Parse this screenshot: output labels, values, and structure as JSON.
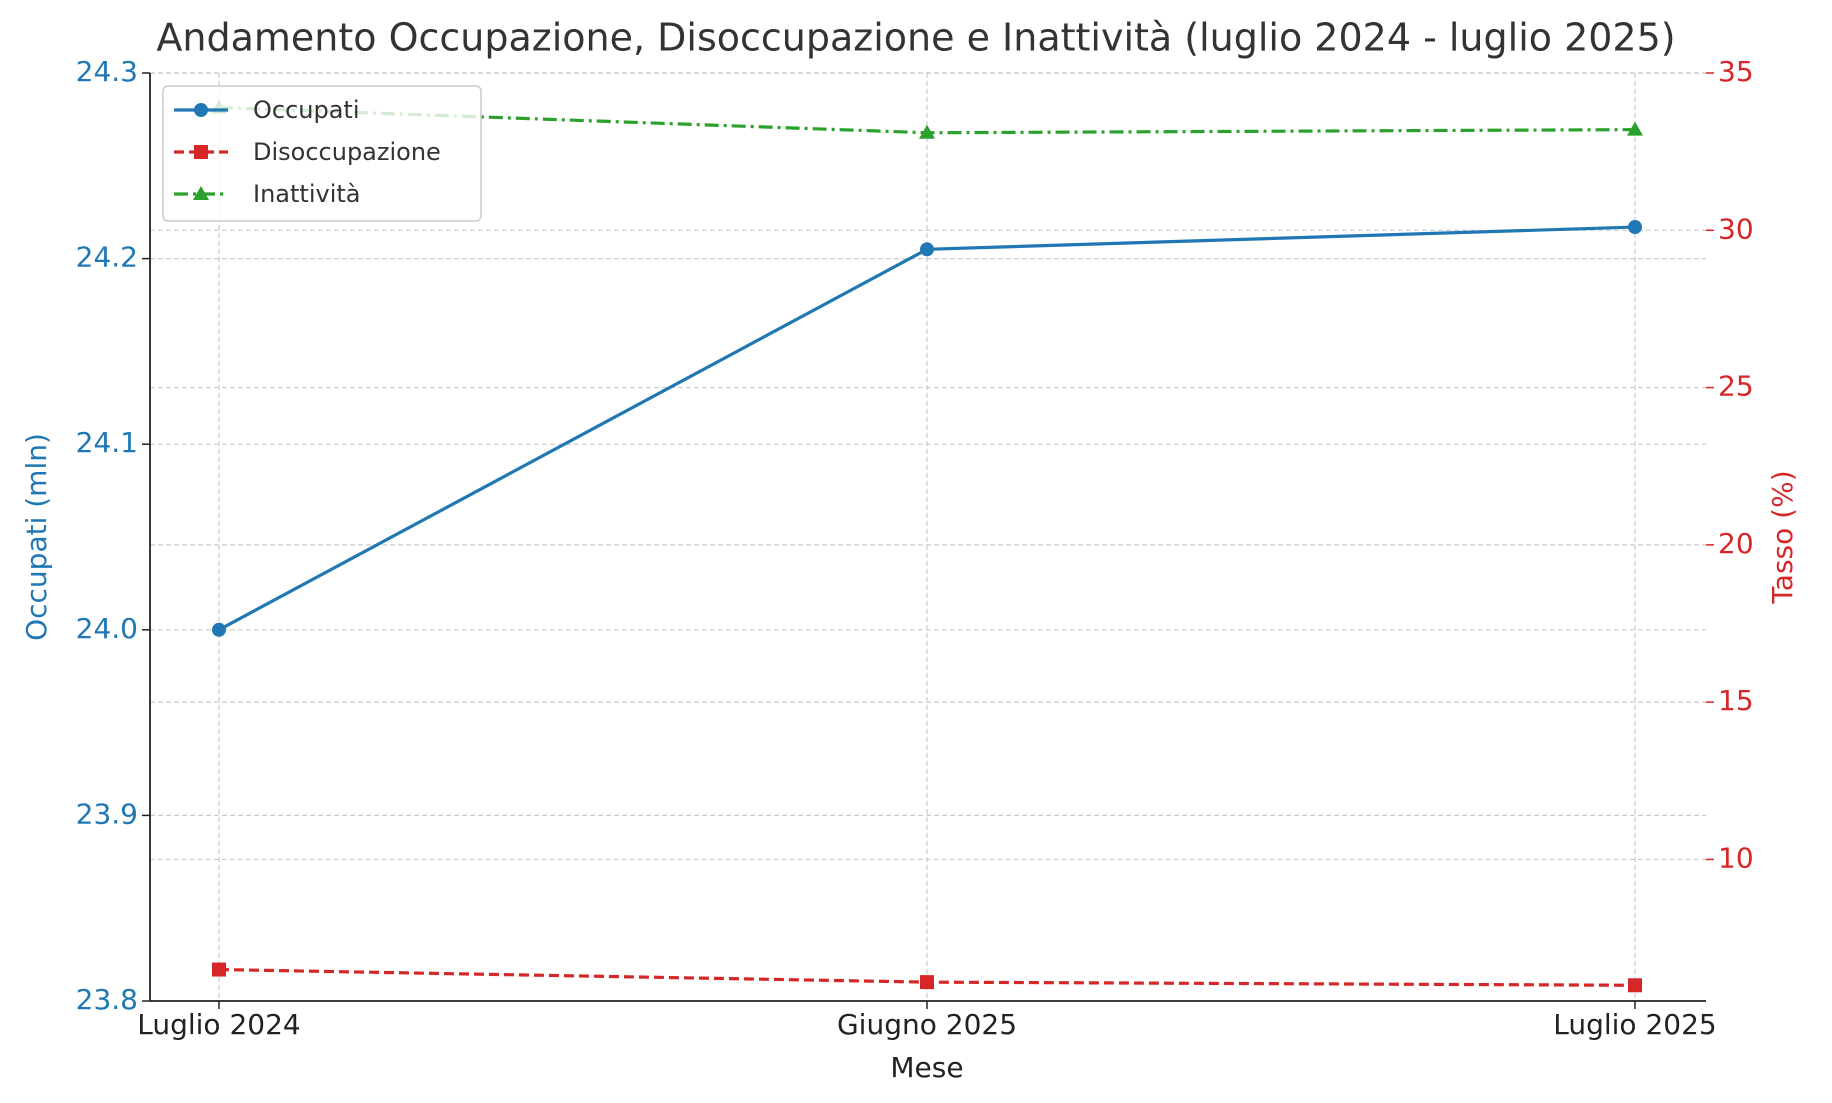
{
  "chart_data": {
    "type": "line",
    "title": "Andamento Occupazione, Disoccupazione e Inattività (luglio 2024 - luglio 2025)",
    "x_label": "Mese",
    "y_label": "Occupati (mln)",
    "y2_label": "Tasso (%)",
    "y_color": "#1f77b4",
    "y2_color": "#d62728",
    "categories": [
      "Luglio 2024",
      "Giugno 2025",
      "Luglio 2025"
    ],
    "series": [
      {
        "name": "Occupati",
        "color": "#1f77b4",
        "marker": "circle",
        "linestyle": "solid",
        "values": [
          24.0,
          24.205,
          24.217
        ]
      },
      {
        "name": "Disoccupazione",
        "color": "#d62728",
        "marker": "square",
        "linestyle": "dashed",
        "axis": "y2",
        "values": [
          6.5,
          6.1,
          6.0
        ]
      },
      {
        "name": "Inattività",
        "color": "#2ca02c",
        "marker": "triangle",
        "linestyle": "dashdot",
        "axis": "y2",
        "values": [
          33.9,
          33.1,
          33.2
        ]
      }
    ],
    "ylim": [
      23.8,
      24.3
    ],
    "yticks": [
      23.8,
      23.9,
      {
        "value": 24.0,
        "label": "24.0"
      },
      24.1,
      24.2,
      24.3
    ],
    "y2lim": [
      5.5,
      35
    ],
    "y2ticks": [
      10,
      15,
      20,
      25,
      30,
      35
    ],
    "grid": true,
    "legend": "upper left"
  }
}
